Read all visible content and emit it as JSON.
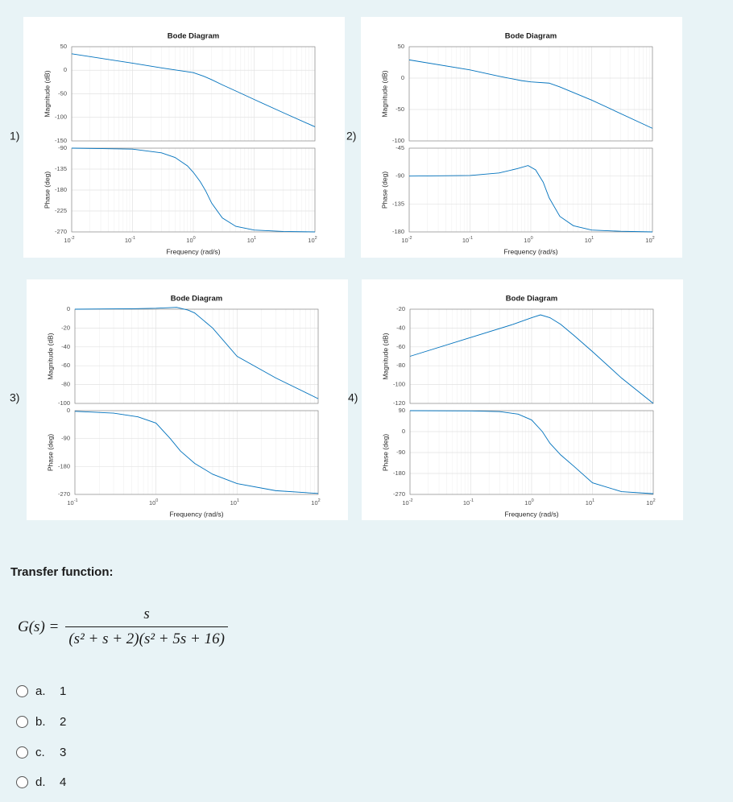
{
  "plots": [
    {
      "label": "1)",
      "chart_data": {
        "type": "bode",
        "title": "Bode Diagram",
        "xlabel": "Frequency  (rad/s)",
        "color": "#0072bd",
        "xlim": [
          0.01,
          100
        ],
        "xticks": [
          {
            "value": 0.01,
            "label": "10",
            "exponent": "-2"
          },
          {
            "value": 0.1,
            "label": "10",
            "exponent": "-1"
          },
          {
            "value": 1,
            "label": "10",
            "exponent": "0"
          },
          {
            "value": 10,
            "label": "10",
            "exponent": "1"
          },
          {
            "value": 100,
            "label": "10",
            "exponent": "2"
          }
        ],
        "magnitude": {
          "ylabel": "Magnitude (dB)",
          "ylim": [
            -150,
            50
          ],
          "yticks": [
            -150,
            -100,
            -50,
            0,
            50
          ],
          "x": [
            0.01,
            0.1,
            0.3,
            1,
            1.5,
            2,
            3,
            5,
            10,
            30,
            100
          ],
          "values": [
            35,
            15,
            5,
            -5,
            -13,
            -20,
            -31,
            -44,
            -62,
            -90,
            -120
          ]
        },
        "phase": {
          "ylabel": "Phase (deg)",
          "ylim": [
            -270,
            -90
          ],
          "yticks": [
            -270,
            -225,
            -180,
            -135,
            -90
          ],
          "x": [
            0.01,
            0.1,
            0.3,
            0.5,
            0.8,
            1,
            1.3,
            1.6,
            2,
            3,
            5,
            10,
            30,
            100
          ],
          "values": [
            -90,
            -92,
            -100,
            -110,
            -128,
            -142,
            -162,
            -182,
            -208,
            -240,
            -258,
            -266,
            -269,
            -270
          ]
        }
      }
    },
    {
      "label": "2)",
      "chart_data": {
        "type": "bode",
        "title": "Bode Diagram",
        "xlabel": "Frequency  (rad/s)",
        "color": "#0072bd",
        "xlim": [
          0.01,
          100
        ],
        "xticks": [
          {
            "value": 0.01,
            "label": "10",
            "exponent": "-2"
          },
          {
            "value": 0.1,
            "label": "10",
            "exponent": "-1"
          },
          {
            "value": 1,
            "label": "10",
            "exponent": "0"
          },
          {
            "value": 10,
            "label": "10",
            "exponent": "1"
          },
          {
            "value": 100,
            "label": "10",
            "exponent": "2"
          }
        ],
        "magnitude": {
          "ylabel": "Magnitude (dB)",
          "ylim": [
            -100,
            50
          ],
          "yticks": [
            -100,
            -50,
            0,
            50
          ],
          "x": [
            0.01,
            0.1,
            0.3,
            0.7,
            1,
            2,
            3,
            10,
            100
          ],
          "values": [
            29,
            13,
            3,
            -4,
            -6,
            -8,
            -14,
            -35,
            -80
          ]
        },
        "phase": {
          "ylabel": "Phase (deg)",
          "ylim": [
            -180,
            -45
          ],
          "yticks": [
            -180,
            -135,
            -90,
            -45
          ],
          "x": [
            0.01,
            0.1,
            0.3,
            0.6,
            0.9,
            1.2,
            1.6,
            2,
            3,
            5,
            10,
            30,
            100
          ],
          "values": [
            -90,
            -89,
            -85,
            -78,
            -73,
            -80,
            -100,
            -125,
            -155,
            -170,
            -177,
            -179,
            -180
          ]
        }
      }
    },
    {
      "label": "3)",
      "chart_data": {
        "type": "bode",
        "title": "Bode Diagram",
        "xlabel": "Frequency  (rad/s)",
        "color": "#0072bd",
        "xlim": [
          0.1,
          100
        ],
        "xticks": [
          {
            "value": 0.1,
            "label": "10",
            "exponent": "-1"
          },
          {
            "value": 1,
            "label": "10",
            "exponent": "0"
          },
          {
            "value": 10,
            "label": "10",
            "exponent": "1"
          },
          {
            "value": 100,
            "label": "10",
            "exponent": "2"
          }
        ],
        "magnitude": {
          "ylabel": "Magnitude (dB)",
          "ylim": [
            -100,
            0
          ],
          "yticks": [
            -100,
            -80,
            -60,
            -40,
            -20,
            0
          ],
          "x": [
            0.1,
            0.5,
            1,
            1.8,
            2.5,
            3,
            5,
            10,
            30,
            100
          ],
          "values": [
            0,
            0.5,
            1,
            2,
            -1,
            -4,
            -20,
            -50,
            -73,
            -95
          ]
        },
        "phase": {
          "ylabel": "Phase (deg)",
          "ylim": [
            -270,
            0
          ],
          "yticks": [
            -270,
            -180,
            -90,
            0
          ],
          "x": [
            0.1,
            0.3,
            0.6,
            1,
            1.5,
            2,
            3,
            5,
            10,
            30,
            100
          ],
          "values": [
            -2,
            -8,
            -20,
            -40,
            -90,
            -130,
            -170,
            -205,
            -235,
            -258,
            -267
          ]
        }
      }
    },
    {
      "label": "4)",
      "chart_data": {
        "type": "bode",
        "title": "Bode Diagram",
        "xlabel": "Frequency  (rad/s)",
        "color": "#0072bd",
        "xlim": [
          0.01,
          100
        ],
        "xticks": [
          {
            "value": 0.01,
            "label": "10",
            "exponent": "-2"
          },
          {
            "value": 0.1,
            "label": "10",
            "exponent": "-1"
          },
          {
            "value": 1,
            "label": "10",
            "exponent": "0"
          },
          {
            "value": 10,
            "label": "10",
            "exponent": "1"
          },
          {
            "value": 100,
            "label": "10",
            "exponent": "2"
          }
        ],
        "magnitude": {
          "ylabel": "Magnitude (dB)",
          "ylim": [
            -120,
            -20
          ],
          "yticks": [
            -120,
            -100,
            -80,
            -60,
            -40,
            -20
          ],
          "x": [
            0.01,
            0.1,
            0.5,
            1,
            1.4,
            2,
            3,
            5,
            10,
            30,
            100
          ],
          "values": [
            -70,
            -50,
            -36,
            -29,
            -26,
            -29,
            -36,
            -48,
            -65,
            -93,
            -120
          ]
        },
        "phase": {
          "ylabel": "Phase (deg)",
          "ylim": [
            -270,
            90
          ],
          "yticks": [
            -270,
            -180,
            -90,
            0,
            90
          ],
          "x": [
            0.01,
            0.1,
            0.3,
            0.6,
            1,
            1.5,
            2,
            3,
            5,
            10,
            30,
            100
          ],
          "values": [
            90,
            89,
            86,
            75,
            50,
            0,
            -50,
            -100,
            -150,
            -220,
            -258,
            -267
          ]
        }
      }
    }
  ],
  "section_title": "Transfer function:",
  "transfer_function": {
    "lhs": "G(s) =",
    "numerator": "s",
    "denominator": "(s² + s + 2)(s² + 5s + 16)"
  },
  "options": [
    {
      "letter": "a.",
      "text": "1"
    },
    {
      "letter": "b.",
      "text": "2"
    },
    {
      "letter": "c.",
      "text": "3"
    },
    {
      "letter": "d.",
      "text": "4"
    }
  ]
}
